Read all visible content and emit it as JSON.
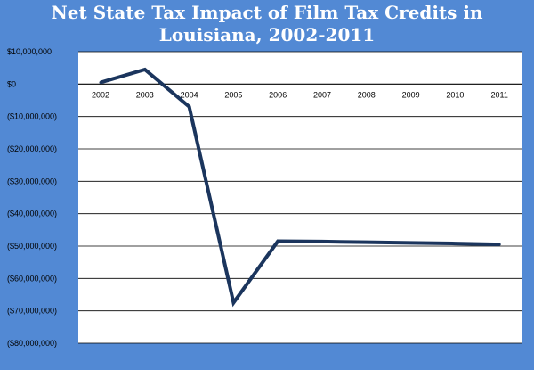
{
  "chart_data": {
    "type": "line",
    "title_line1": "Net State Tax Impact of Film Tax Credits in",
    "title_line2": "Louisiana, 2002-2011",
    "xlabel": "",
    "ylabel": "",
    "x": [
      "2002",
      "2003",
      "2004",
      "2005",
      "2006",
      "2007",
      "2008",
      "2009",
      "2010",
      "2011"
    ],
    "series": [
      {
        "values": [
          500000,
          4500000,
          -7000000,
          -67500000,
          -48500000,
          -48600000,
          -48800000,
          -49000000,
          -49200000,
          -49500000
        ]
      }
    ],
    "ylim": [
      -80000000,
      10000000
    ],
    "ytick_values": [
      10000000,
      0,
      -10000000,
      -20000000,
      -30000000,
      -40000000,
      -50000000,
      -60000000,
      -70000000,
      -80000000
    ],
    "ytick_labels": [
      "$10,000,000",
      "$0",
      "($10,000,000)",
      "($20,000,000)",
      "($30,000,000)",
      "($40,000,000)",
      "($50,000,000)",
      "($60,000,000)",
      "($70,000,000)",
      "($80,000,000)"
    ],
    "grid": true,
    "legend": "none",
    "colors": {
      "background": "#5289d4",
      "plot_area": "#ffffff",
      "line": "#1b355d",
      "gridline": "#000000",
      "title": "#ffffff"
    }
  }
}
